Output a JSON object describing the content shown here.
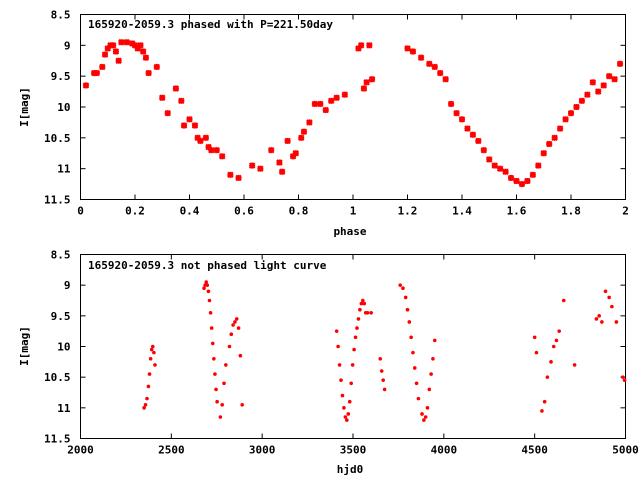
{
  "colors": {
    "points": "#ff0000",
    "axes": "#000000",
    "background": "#ffffff"
  },
  "chart_data": [
    {
      "type": "scatter",
      "title": "165920-2059.3 phased with P=221.50day",
      "xlabel": "phase",
      "ylabel": "I[mag]",
      "xlim": [
        0,
        2
      ],
      "ylim": [
        11.5,
        8.5
      ],
      "y_inverted": true,
      "grid": false,
      "xticks": [
        "0",
        "0.2",
        "0.4",
        "0.6",
        "0.8",
        "1",
        "1.2",
        "1.4",
        "1.6",
        "1.8",
        "2"
      ],
      "yticks": [
        "8.5",
        "9",
        "9.5",
        "10",
        "10.5",
        "11",
        "11.5"
      ],
      "marker": "cross",
      "series": [
        {
          "x": [
            0.02,
            0.05,
            0.06,
            0.08,
            0.09,
            0.1,
            0.11,
            0.12,
            0.13,
            0.14,
            0.15,
            0.17,
            0.19,
            0.2,
            0.21,
            0.22,
            0.23,
            0.24,
            0.25,
            0.28,
            0.3,
            0.32,
            0.35,
            0.37,
            0.38,
            0.4,
            0.42,
            0.43,
            0.44,
            0.46,
            0.47,
            0.48,
            0.5,
            0.52,
            0.55,
            0.58,
            0.63,
            0.66,
            0.7,
            0.73,
            0.74,
            0.76,
            0.78,
            0.79,
            0.81,
            0.82,
            0.84,
            0.86,
            0.88,
            0.9,
            0.92,
            0.94,
            0.97,
            1.02,
            1.03,
            1.04,
            1.05,
            1.06,
            1.07,
            1.2,
            1.22,
            1.25,
            1.28,
            1.3,
            1.32,
            1.34,
            1.36,
            1.38,
            1.4,
            1.42,
            1.44,
            1.46,
            1.48,
            1.5,
            1.52,
            1.54,
            1.56,
            1.58,
            1.6,
            1.62,
            1.64,
            1.66,
            1.68,
            1.7,
            1.72,
            1.74,
            1.76,
            1.78,
            1.8,
            1.82,
            1.84,
            1.86,
            1.88,
            1.9,
            1.92,
            1.94,
            1.96,
            1.98
          ],
          "y": [
            9.65,
            9.45,
            9.45,
            9.35,
            9.15,
            9.05,
            9.0,
            9.0,
            9.1,
            9.25,
            8.95,
            8.95,
            8.97,
            9.0,
            9.05,
            9.0,
            9.1,
            9.2,
            9.45,
            9.35,
            9.85,
            10.1,
            9.7,
            9.9,
            10.3,
            10.2,
            10.3,
            10.5,
            10.55,
            10.5,
            10.65,
            10.7,
            10.7,
            10.8,
            11.1,
            11.15,
            10.95,
            11.0,
            10.7,
            10.9,
            11.05,
            10.55,
            10.8,
            10.75,
            10.5,
            10.4,
            10.25,
            9.95,
            9.95,
            10.05,
            9.9,
            9.85,
            9.8,
            9.05,
            9.0,
            9.7,
            9.6,
            9.0,
            9.55,
            9.05,
            9.1,
            9.2,
            9.3,
            9.35,
            9.45,
            9.55,
            9.95,
            10.1,
            10.2,
            10.35,
            10.45,
            10.55,
            10.7,
            10.85,
            10.95,
            11.0,
            11.05,
            11.15,
            11.2,
            11.25,
            11.2,
            11.1,
            10.95,
            10.75,
            10.6,
            10.5,
            10.35,
            10.2,
            10.1,
            10.0,
            9.9,
            9.8,
            9.6,
            9.75,
            9.65,
            9.5,
            9.55,
            9.3
          ]
        }
      ]
    },
    {
      "type": "scatter",
      "title": "165920-2059.3 not phased light curve",
      "xlabel": "hjd0",
      "ylabel": "I[mag]",
      "xlim": [
        2000,
        5000
      ],
      "ylim": [
        11.5,
        8.5
      ],
      "y_inverted": true,
      "grid": false,
      "xticks": [
        "2000",
        "2500",
        "3000",
        "3500",
        "4000",
        "4500",
        "5000"
      ],
      "yticks": [
        "8.5",
        "9",
        "9.5",
        "10",
        "10.5",
        "11",
        "11.5"
      ],
      "marker": "dot",
      "series": [
        {
          "x": [
            2350,
            2358,
            2366,
            2374,
            2380,
            2386,
            2392,
            2398,
            2404,
            2410,
            2680,
            2686,
            2692,
            2698,
            2704,
            2710,
            2716,
            2722,
            2728,
            2734,
            2740,
            2746,
            2752,
            2770,
            2780,
            2790,
            2800,
            2820,
            2830,
            2840,
            2850,
            2860,
            2870,
            2880,
            2890,
            3410,
            3418,
            3426,
            3434,
            3442,
            3450,
            3458,
            3466,
            3474,
            3482,
            3490,
            3498,
            3506,
            3514,
            3522,
            3530,
            3538,
            3546,
            3554,
            3562,
            3570,
            3580,
            3600,
            3650,
            3658,
            3666,
            3674,
            3760,
            3775,
            3790,
            3800,
            3810,
            3820,
            3830,
            3840,
            3850,
            3860,
            3880,
            3890,
            3900,
            3910,
            3920,
            3930,
            3940,
            3950,
            4500,
            4510,
            4540,
            4555,
            4570,
            4590,
            4605,
            4620,
            4635,
            4660,
            4720,
            4840,
            4855,
            4870,
            4890,
            4910,
            4925,
            4950,
            4985,
            4995
          ],
          "y": [
            11.0,
            10.95,
            10.85,
            10.65,
            10.45,
            10.2,
            10.05,
            10.0,
            10.1,
            10.3,
            9.05,
            9.0,
            8.95,
            9.0,
            9.1,
            9.25,
            9.45,
            9.7,
            9.95,
            10.2,
            10.45,
            10.7,
            10.9,
            11.15,
            10.95,
            10.6,
            10.3,
            10.0,
            9.8,
            9.65,
            9.6,
            9.55,
            9.7,
            10.15,
            10.95,
            9.75,
            10.0,
            10.3,
            10.55,
            10.8,
            11.0,
            11.15,
            11.2,
            11.1,
            10.9,
            10.6,
            10.3,
            10.05,
            9.85,
            9.7,
            9.55,
            9.4,
            9.3,
            9.25,
            9.3,
            9.45,
            9.45,
            9.45,
            10.2,
            10.4,
            10.55,
            10.7,
            9.0,
            9.05,
            9.2,
            9.4,
            9.6,
            9.85,
            10.1,
            10.35,
            10.6,
            10.85,
            11.1,
            11.2,
            11.15,
            11.0,
            10.7,
            10.45,
            10.2,
            9.9,
            9.85,
            10.1,
            11.05,
            10.9,
            10.5,
            10.25,
            10.0,
            9.9,
            9.75,
            9.25,
            10.3,
            9.55,
            9.5,
            9.6,
            9.1,
            9.2,
            9.35,
            9.6,
            10.5,
            10.55
          ]
        }
      ]
    }
  ]
}
